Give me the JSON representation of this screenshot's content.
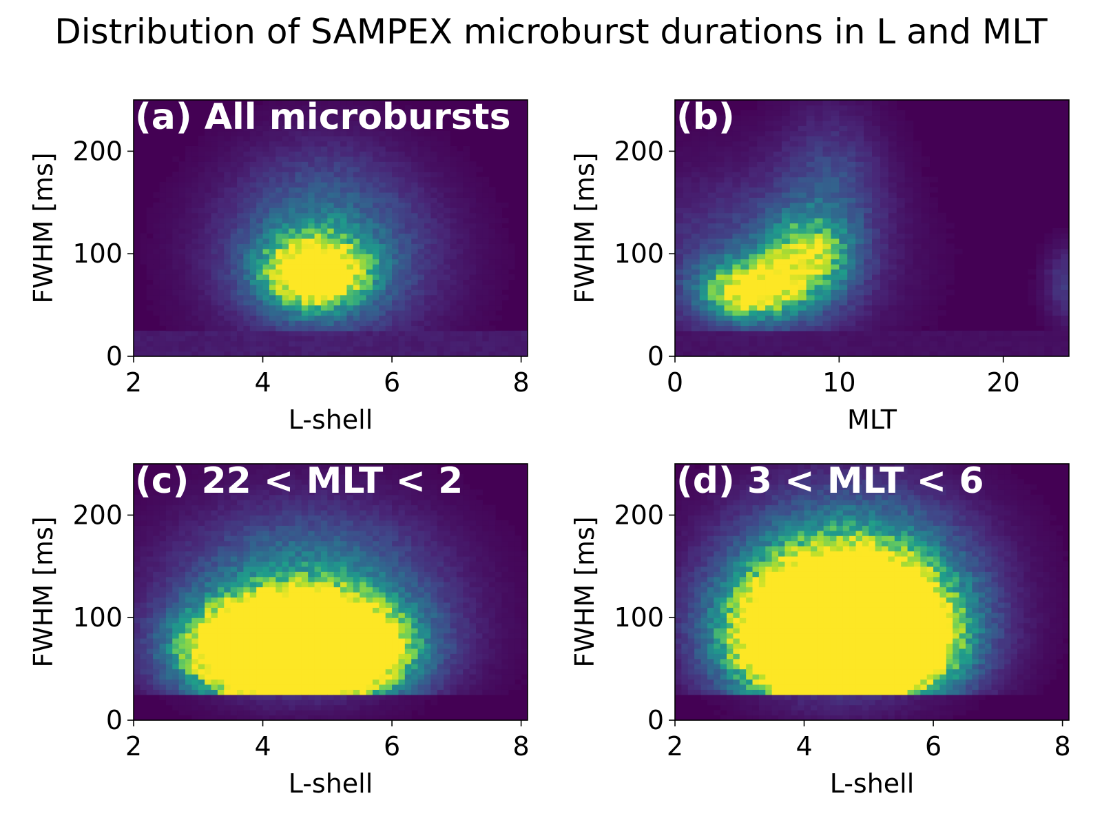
{
  "figure_title": "Distribution of SAMPEX microburst durations in L and MLT",
  "colormap": {
    "name": "viridis",
    "background": "#440154",
    "stops": [
      "#440154",
      "#482777",
      "#3f4a8a",
      "#31678e",
      "#26838f",
      "#1f9d8a",
      "#6cce5a",
      "#b6de2b",
      "#fde725"
    ]
  },
  "chart_data": [
    {
      "type": "heatmap",
      "panel_label": "(a) All microbursts",
      "xlabel": "L-shell",
      "ylabel": "FWHM [ms]",
      "xlim": [
        2,
        8.1
      ],
      "ylim": [
        0,
        250
      ],
      "xticks": [
        "2",
        "4",
        "6",
        "8"
      ],
      "yticks": [
        "0",
        "100",
        "200"
      ],
      "bin_width": [
        0.1,
        5
      ],
      "saturation": 1.15,
      "bands": [
        [
          0,
          25,
          0.18
        ]
      ],
      "blobs": [
        {
          "x": 4.8,
          "y": 82,
          "sx": 0.55,
          "sy": 24,
          "amp": 0.95
        },
        {
          "x": 5.0,
          "y": 95,
          "sx": 1.1,
          "sy": 55,
          "amp": 0.38
        },
        {
          "x": 4.9,
          "y": 160,
          "sx": 0.9,
          "sy": 45,
          "amp": 0.1
        }
      ]
    },
    {
      "type": "heatmap",
      "panel_label": "(b)",
      "xlabel": "MLT",
      "ylabel": "FWHM [ms]",
      "xlim": [
        0,
        24
      ],
      "ylim": [
        0,
        250
      ],
      "xticks": [
        "0",
        "10",
        "20"
      ],
      "yticks": [
        "0",
        "100",
        "200"
      ],
      "bin_width": [
        0.5,
        5
      ],
      "saturation": 1.15,
      "bands": [
        [
          0,
          25,
          0.1
        ]
      ],
      "blobs": [
        {
          "x": 4.5,
          "y": 65,
          "sx": 2.0,
          "sy": 20,
          "amp": 0.8
        },
        {
          "x": 8.0,
          "y": 95,
          "sx": 1.8,
          "sy": 28,
          "amp": 0.62
        },
        {
          "x": 9.5,
          "y": 160,
          "sx": 2.2,
          "sy": 55,
          "amp": 0.2
        },
        {
          "x": 5.0,
          "y": 90,
          "sx": 5.0,
          "sy": 60,
          "amp": 0.22
        },
        {
          "x": 24.0,
          "y": 70,
          "sx": 1.0,
          "sy": 25,
          "amp": 0.18
        }
      ]
    },
    {
      "type": "heatmap",
      "panel_label": "(c) 22 < MLT < 2",
      "xlabel": "L-shell",
      "ylabel": "FWHM [ms]",
      "xlim": [
        2,
        8.1
      ],
      "ylim": [
        0,
        250
      ],
      "xticks": [
        "2",
        "4",
        "6",
        "8"
      ],
      "yticks": [
        "0",
        "100",
        "200"
      ],
      "bin_width": [
        0.1,
        5
      ],
      "saturation": 2.6,
      "bands": [],
      "blobs": [
        {
          "x": 4.5,
          "y": 68,
          "sx": 0.95,
          "sy": 30,
          "amp": 1.2
        },
        {
          "x": 4.7,
          "y": 110,
          "sx": 1.3,
          "sy": 60,
          "amp": 0.25
        }
      ]
    },
    {
      "type": "heatmap",
      "panel_label": "(d) 3 < MLT < 6",
      "xlabel": "L-shell",
      "ylabel": "FWHM [ms]",
      "xlim": [
        2,
        8.1
      ],
      "ylim": [
        0,
        250
      ],
      "xticks": [
        "2",
        "4",
        "6",
        "8"
      ],
      "yticks": [
        "0",
        "100",
        "200"
      ],
      "bin_width": [
        0.1,
        5
      ],
      "saturation": 2.6,
      "bands": [],
      "blobs": [
        {
          "x": 4.6,
          "y": 80,
          "sx": 1.0,
          "sy": 42,
          "amp": 1.25
        },
        {
          "x": 4.7,
          "y": 140,
          "sx": 1.2,
          "sy": 55,
          "amp": 0.3
        }
      ]
    }
  ]
}
